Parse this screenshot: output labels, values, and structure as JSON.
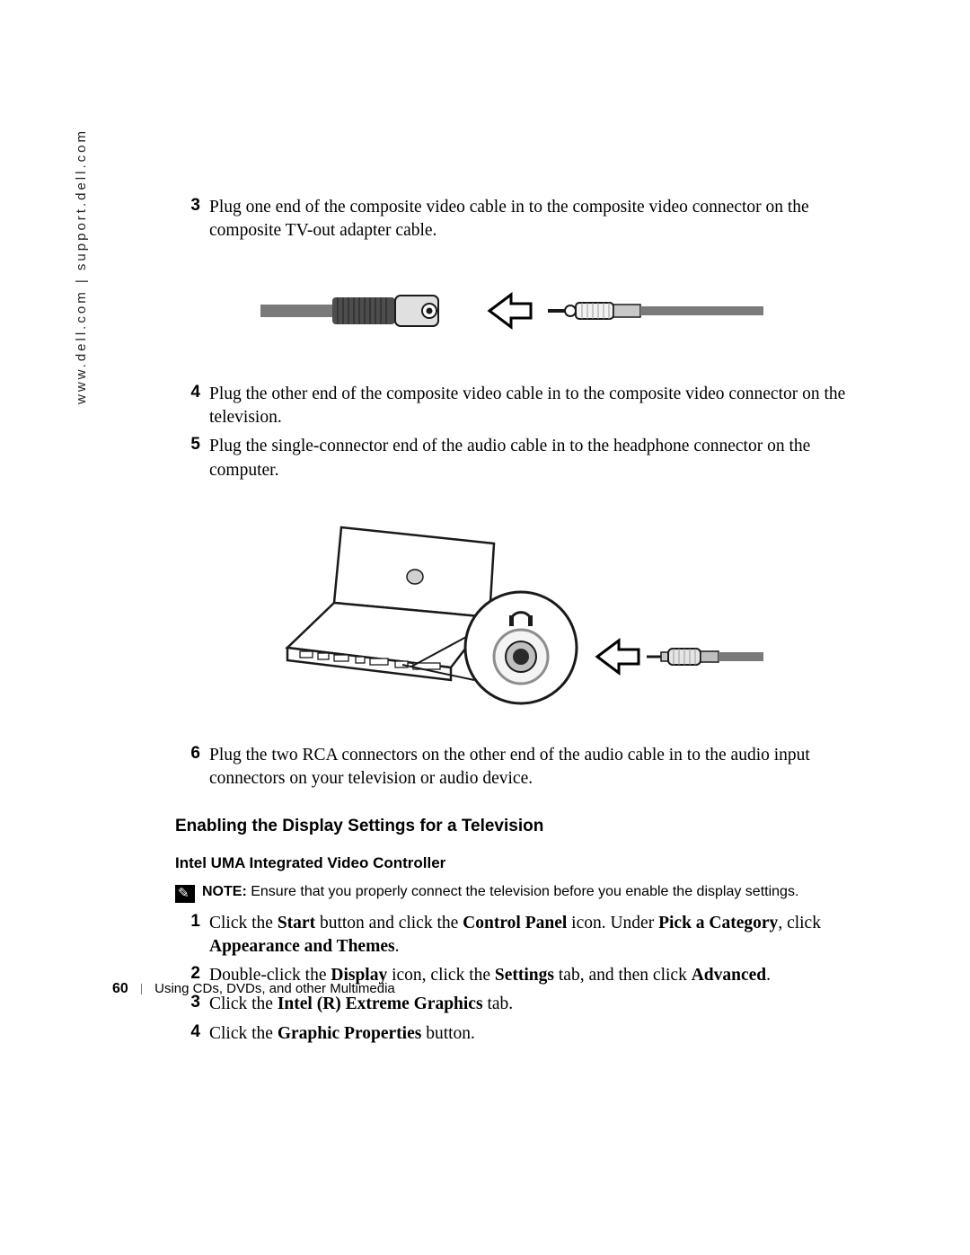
{
  "sidebar_url": "www.dell.com | support.dell.com",
  "steps_top": [
    {
      "n": "3",
      "text": "Plug one end of the composite video cable in to the composite video connector on the composite TV-out adapter cable."
    }
  ],
  "figure1": {
    "cable_body": "#7a7a7a",
    "cable_dark": "#4d4d4d",
    "cable_light": "#e0e0e0",
    "outline": "#1a1a1a",
    "bg": "#ffffff"
  },
  "steps_mid": [
    {
      "n": "4",
      "text": "Plug the other end of the composite video cable in to the composite video connector on the television."
    },
    {
      "n": "5",
      "text": "Plug the single-connector end of the audio cable in to the headphone connector on the computer."
    }
  ],
  "figure2": {
    "laptop_outline": "#1a1a1a",
    "laptop_fill": "#ffffff",
    "circle_stroke": "#1a1a1a",
    "jack_outer": "#8d8d8d",
    "jack_inner": "#2a2a2a",
    "plug_body": "#7a7a7a",
    "plug_light": "#e5e5e5",
    "headphone_icon": "#1a1a1a"
  },
  "steps_after_fig2": [
    {
      "n": "6",
      "text": "Plug the two RCA connectors on the other end of the audio cable in to the audio input connectors on your television or audio device."
    }
  ],
  "heading": "Enabling the Display Settings for a Television",
  "subheading": "Intel UMA Integrated Video Controller",
  "note_label": "NOTE:",
  "note_text": " Ensure that you properly connect the television before you enable the display settings.",
  "steps_bottom": [
    {
      "n": "1",
      "html": "Click the <b class='ui'>Start</b> button and click the <b class='ui'>Control Panel</b> icon. Under <b class='ui'>Pick a Category</b>, click <b class='ui'>Appearance and Themes</b>."
    },
    {
      "n": "2",
      "html": "Double-click the <b class='ui'>Display</b> icon, click the <b class='ui'>Settings</b> tab, and then click <b class='ui'>Advanced</b>."
    },
    {
      "n": "3",
      "html": "Click the <b class='ui'>Intel (R) Extreme Graphics</b> tab."
    },
    {
      "n": "4",
      "html": "Click the <b class='ui'>Graphic Properties</b> button."
    }
  ],
  "footer": {
    "page": "60",
    "section": "Using CDs, DVDs, and other Multimedia"
  }
}
